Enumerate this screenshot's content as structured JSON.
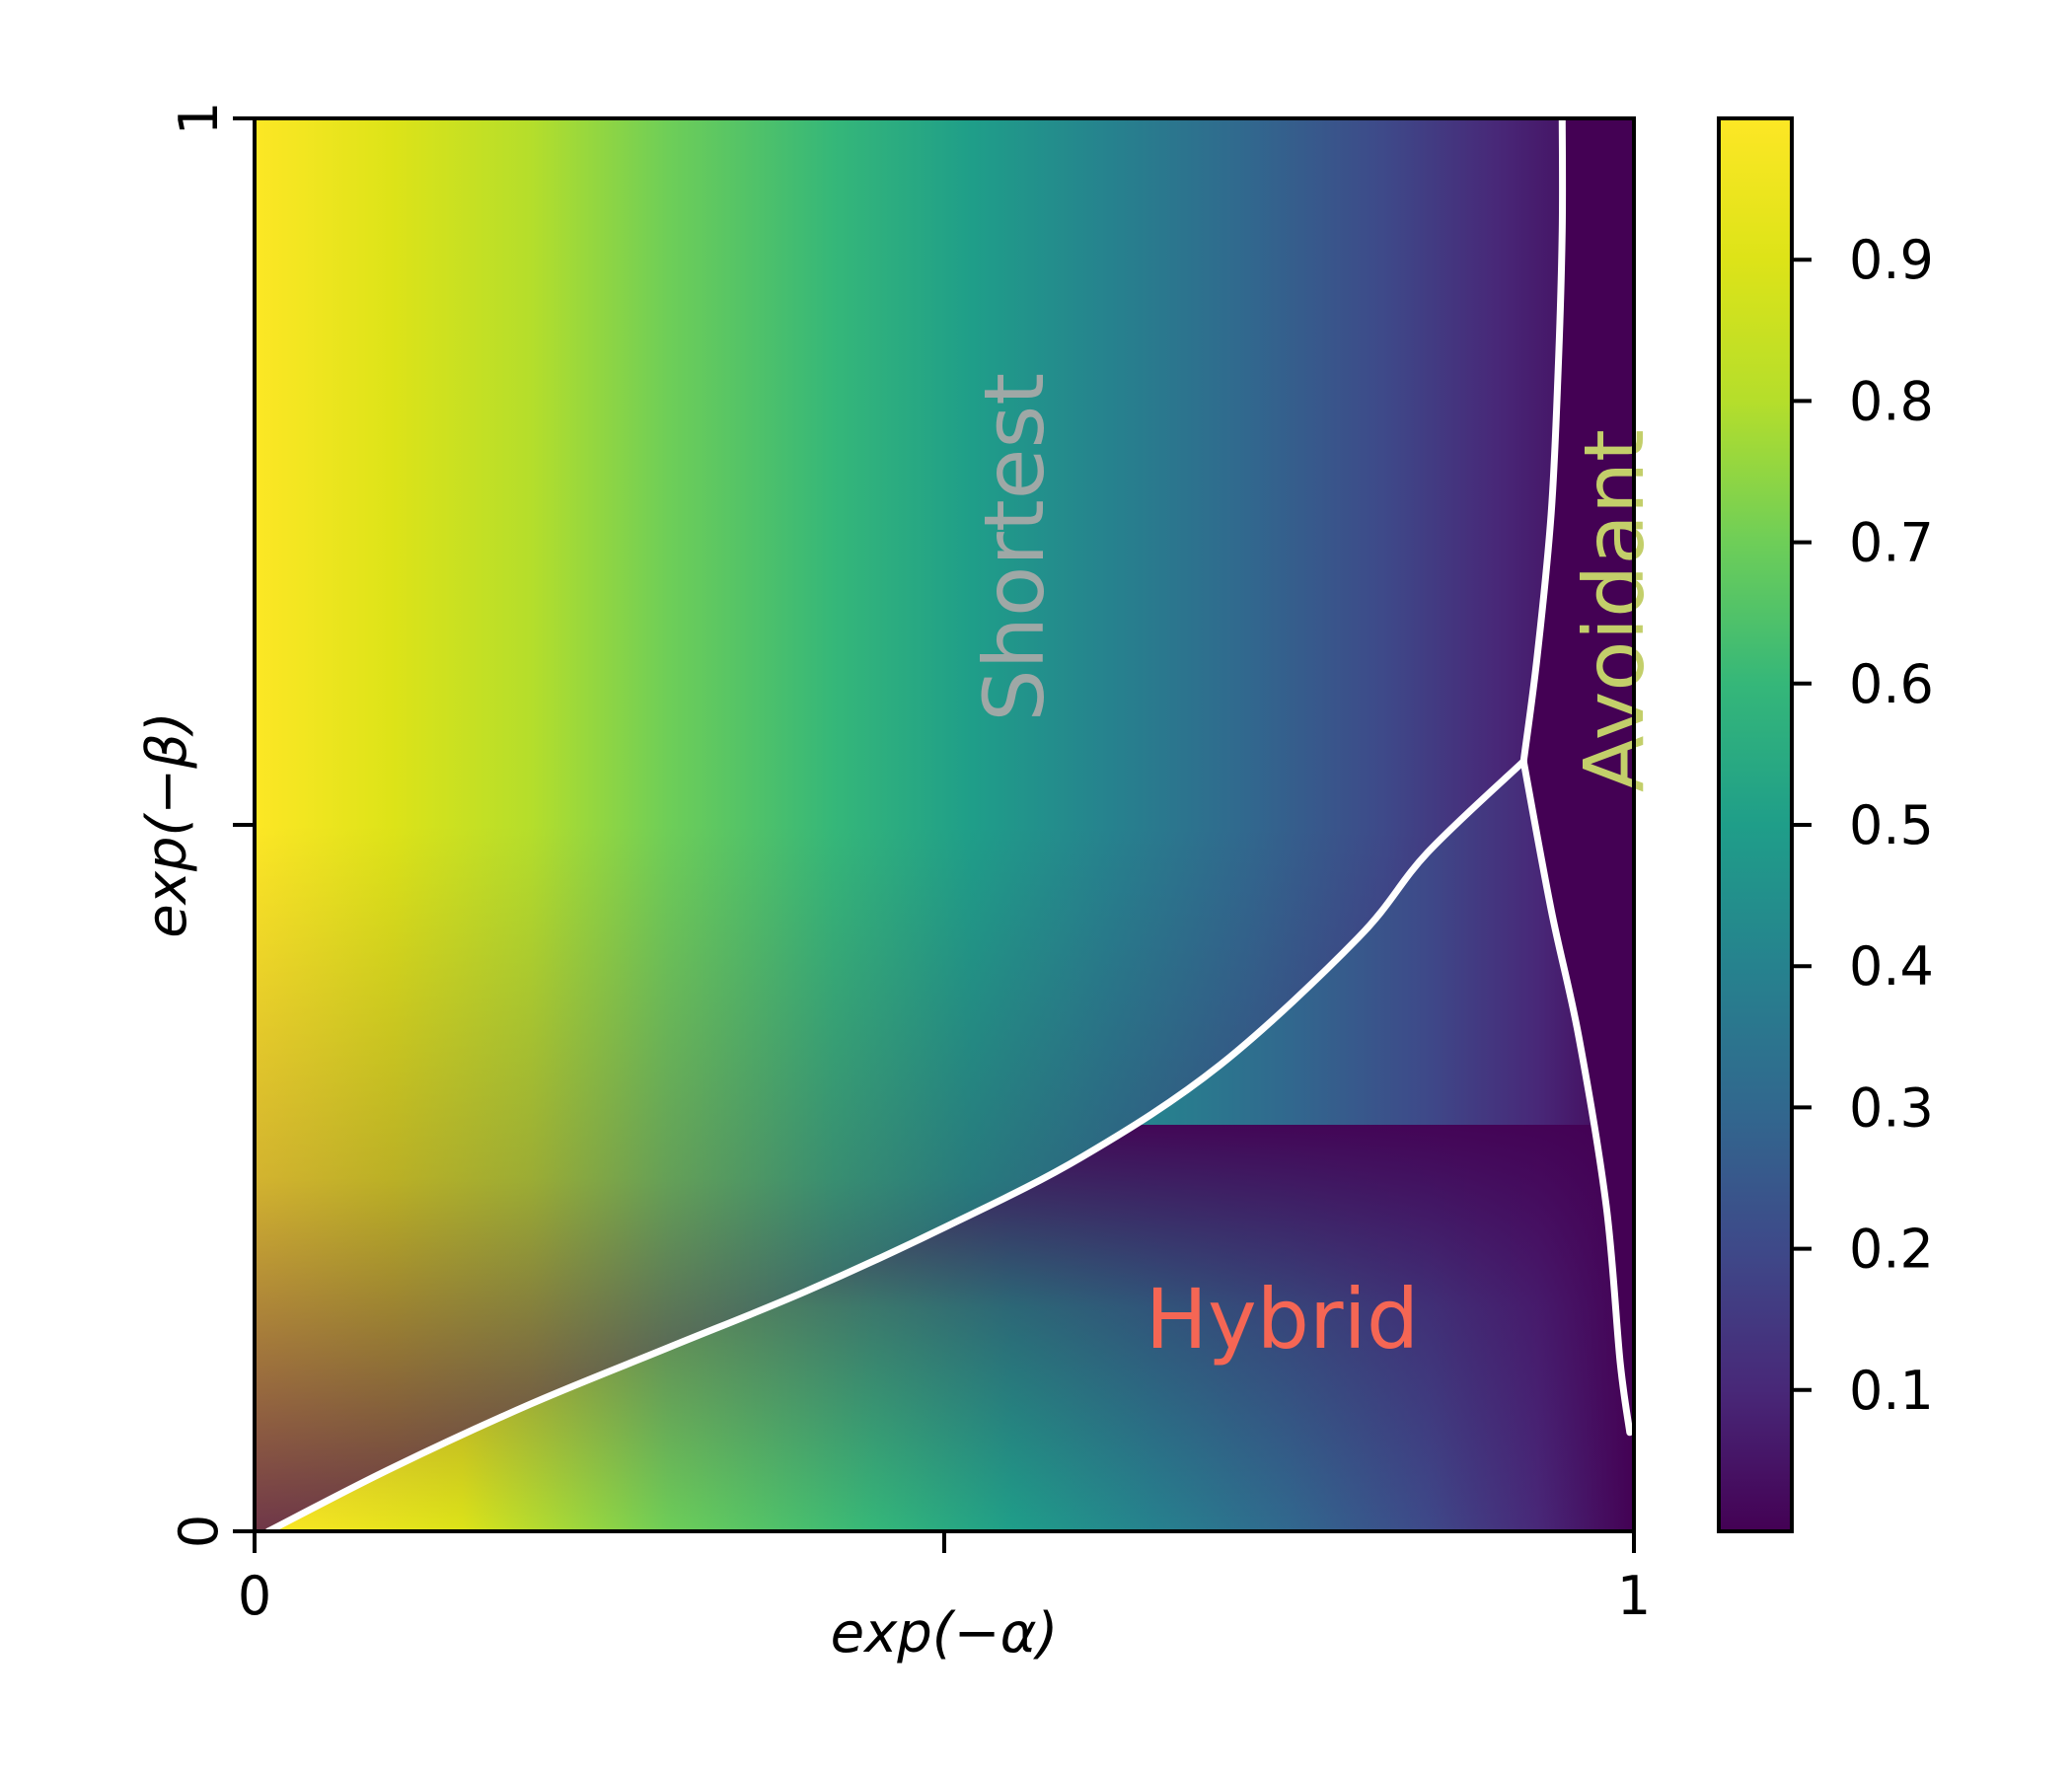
{
  "chart_data": {
    "type": "heatmap",
    "title": "",
    "xlabel": "exp(−α)",
    "ylabel": "exp(−β)",
    "xlim": [
      0,
      1
    ],
    "ylim": [
      0,
      1
    ],
    "x_ticks": [
      {
        "value": 0,
        "label": "0"
      },
      {
        "value": 0.5,
        "label": ""
      },
      {
        "value": 1,
        "label": "1"
      }
    ],
    "y_ticks": [
      {
        "value": 0,
        "label": "0"
      },
      {
        "value": 0.5,
        "label": ""
      },
      {
        "value": 1,
        "label": "1"
      }
    ],
    "colormap": "viridis",
    "colorbar": {
      "range": [
        0.0,
        1.0
      ],
      "ticks": [
        {
          "value": 0.1,
          "label": "0.1"
        },
        {
          "value": 0.2,
          "label": "0.2"
        },
        {
          "value": 0.3,
          "label": "0.3"
        },
        {
          "value": 0.4,
          "label": "0.4"
        },
        {
          "value": 0.5,
          "label": "0.5"
        },
        {
          "value": 0.6,
          "label": "0.6"
        },
        {
          "value": 0.7,
          "label": "0.7"
        },
        {
          "value": 0.8,
          "label": "0.8"
        },
        {
          "value": 0.9,
          "label": "0.9"
        }
      ]
    },
    "boundaries": [
      {
        "name": "shortest-hybrid",
        "color": "#ffffff",
        "points": [
          [
            0.01,
            0.0
          ],
          [
            0.1,
            0.045
          ],
          [
            0.2,
            0.09
          ],
          [
            0.3,
            0.13
          ],
          [
            0.4,
            0.17
          ],
          [
            0.5,
            0.215
          ],
          [
            0.6,
            0.265
          ],
          [
            0.7,
            0.33
          ],
          [
            0.8,
            0.42
          ],
          [
            0.85,
            0.48
          ],
          [
            0.92,
            0.545
          ]
        ]
      },
      {
        "name": "shortest-avoidant",
        "color": "#ffffff",
        "points": [
          [
            0.92,
            0.545
          ],
          [
            0.93,
            0.62
          ],
          [
            0.94,
            0.72
          ],
          [
            0.945,
            0.82
          ],
          [
            0.948,
            0.92
          ],
          [
            0.948,
            1.0
          ]
        ]
      },
      {
        "name": "hybrid-avoidant",
        "color": "#ffffff",
        "points": [
          [
            0.92,
            0.545
          ],
          [
            0.94,
            0.44
          ],
          [
            0.96,
            0.35
          ],
          [
            0.98,
            0.23
          ],
          [
            0.99,
            0.12
          ],
          [
            0.997,
            0.07
          ]
        ]
      }
    ],
    "region_labels": [
      {
        "text": "Shortest",
        "x": 0.55,
        "y": 0.82,
        "color": "#9fa8a6",
        "rotation": -90
      },
      {
        "text": "Avoidant",
        "x": 0.985,
        "y": 0.78,
        "color": "#c3cf6a",
        "rotation": -90
      },
      {
        "text": "Hybrid",
        "x": 0.745,
        "y": 0.13,
        "color": "#f56654",
        "rotation": 0
      }
    ]
  }
}
